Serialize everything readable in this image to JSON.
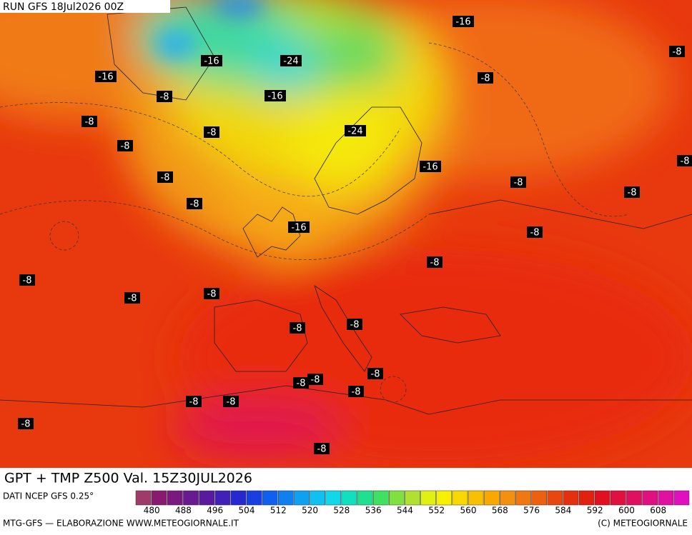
{
  "header": {
    "run": "RUN GFS 18Jul2026 00Z"
  },
  "title": "GPT + TMP Z500 Val. 15Z30JUL2026",
  "map": {
    "temperature_labels": [
      "-16",
      "-8",
      "-16",
      "-24",
      "-8",
      "-16",
      "-8",
      "-16",
      "-8",
      "-8",
      "-24",
      "-8",
      "-16",
      "-8",
      "-8",
      "-8",
      "-8",
      "-8",
      "-16",
      "-8",
      "-8",
      "-8",
      "-8",
      "-8",
      "-8",
      "-8",
      "-8",
      "-8",
      "-8",
      "-8",
      "-8",
      "-8",
      "-8",
      "-8"
    ]
  },
  "legend": {
    "source": "DATI NCEP GFS 0.25°",
    "ticks": [
      480,
      488,
      496,
      504,
      512,
      520,
      528,
      536,
      544,
      552,
      560,
      568,
      576,
      584,
      592,
      600,
      608
    ]
  },
  "footer": {
    "left": "MTG-GFS — ELABORAZIONE WWW.METEOGIORNALE.IT",
    "right": "(C) METEOGIORNALE"
  }
}
